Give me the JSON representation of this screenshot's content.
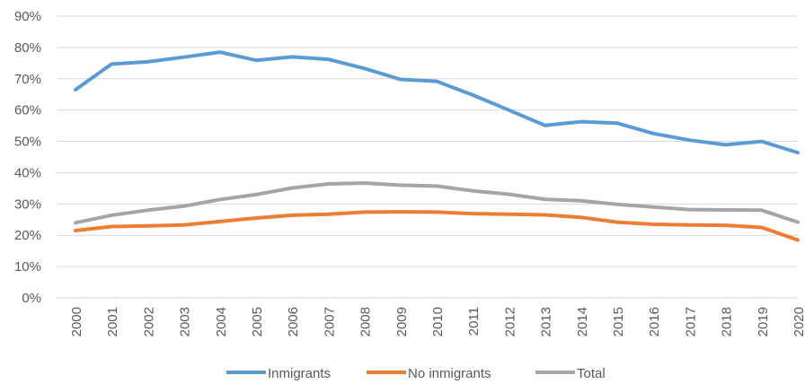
{
  "chart_data": {
    "type": "line",
    "title": "",
    "xlabel": "",
    "ylabel": "",
    "x": [
      "2000",
      "2001",
      "2002",
      "2003",
      "2004",
      "2005",
      "2006",
      "2007",
      "2008",
      "2009",
      "2010",
      "2011",
      "2012",
      "2013",
      "2014",
      "2015",
      "2016",
      "2017",
      "2018",
      "2019",
      "2020"
    ],
    "ylim": [
      0,
      90
    ],
    "yticks": [
      "0%",
      "10%",
      "20%",
      "30%",
      "40%",
      "50%",
      "60%",
      "70%",
      "80%",
      "90%"
    ],
    "grid": true,
    "legend_position": "bottom",
    "series": [
      {
        "name": "Inmigrants",
        "color": "#5b9bd5",
        "values": [
          66.5,
          74.7,
          75.4,
          76.9,
          78.5,
          75.9,
          77.0,
          76.2,
          73.3,
          69.8,
          69.2,
          64.8,
          60.0,
          55.1,
          56.3,
          55.8,
          52.5,
          50.4,
          48.9,
          50.0,
          46.4
        ]
      },
      {
        "name": "No inmigrants",
        "color": "#ed7d31",
        "values": [
          21.5,
          22.8,
          23.0,
          23.3,
          24.4,
          25.5,
          26.4,
          26.7,
          27.4,
          27.5,
          27.4,
          26.9,
          26.7,
          26.5,
          25.7,
          24.2,
          23.5,
          23.3,
          23.2,
          22.5,
          18.5
        ]
      },
      {
        "name": "Total",
        "color": "#a5a5a5",
        "values": [
          24.0,
          26.4,
          28.0,
          29.3,
          31.4,
          33.0,
          35.1,
          36.4,
          36.7,
          36.0,
          35.7,
          34.2,
          33.1,
          31.5,
          31.0,
          29.9,
          29.0,
          28.2,
          28.1,
          28.0,
          24.2
        ]
      }
    ]
  }
}
